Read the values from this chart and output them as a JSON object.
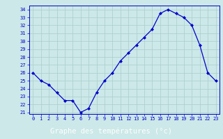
{
  "hours": [
    0,
    1,
    2,
    3,
    4,
    5,
    6,
    7,
    8,
    9,
    10,
    11,
    12,
    13,
    14,
    15,
    16,
    17,
    18,
    19,
    20,
    21,
    22,
    23
  ],
  "temps": [
    26.0,
    25.0,
    24.5,
    23.5,
    22.5,
    22.5,
    21.0,
    21.5,
    23.5,
    25.0,
    26.0,
    27.5,
    28.5,
    29.5,
    30.5,
    31.5,
    33.5,
    34.0,
    33.5,
    33.0,
    32.0,
    29.5,
    26.0,
    25.0
  ],
  "line_color": "#0000cc",
  "marker": "D",
  "marker_size": 2.0,
  "bg_color": "#cce8e8",
  "grid_color": "#aacccc",
  "xlabel": "Graphe des températures (°c)",
  "xlabel_color": "#ffffff",
  "xlabel_bg": "#0000aa",
  "ylabel_min": 21,
  "ylabel_max": 34,
  "xlim": [
    -0.5,
    23.5
  ],
  "ylim": [
    20.8,
    34.5
  ],
  "tick_color": "#0000cc",
  "spine_color": "#0000cc",
  "fig_width": 3.2,
  "fig_height": 2.0,
  "dpi": 100
}
